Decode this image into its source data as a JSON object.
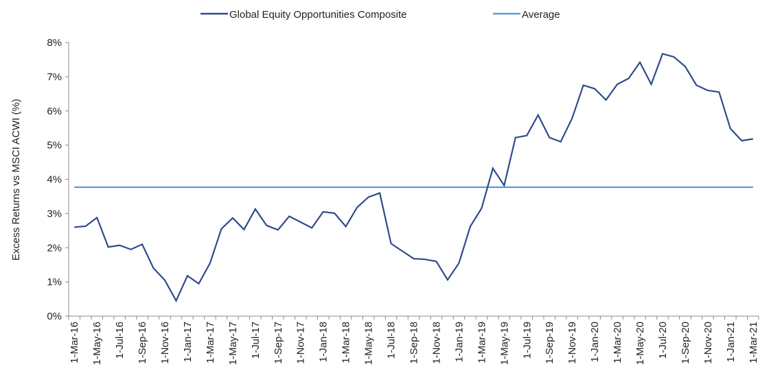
{
  "chart_data": {
    "type": "line",
    "ylabel": "Excess Returns vs MSCI ACWI (%)",
    "categories": [
      "1-Mar-16",
      null,
      "1-May-16",
      null,
      "1-Jul-16",
      null,
      "1-Sep-16",
      null,
      "1-Nov-16",
      null,
      "1-Jan-17",
      null,
      "1-Mar-17",
      null,
      "1-May-17",
      null,
      "1-Jul-17",
      null,
      "1-Sep-17",
      null,
      "1-Nov-17",
      null,
      "1-Jan-18",
      null,
      "1-Mar-18",
      null,
      "1-May-18",
      null,
      "1-Jul-18",
      null,
      "1-Sep-18",
      null,
      "1-Nov-18",
      null,
      "1-Jan-19",
      null,
      "1-Mar-19",
      null,
      "1-May-19",
      null,
      "1-Jul-19",
      null,
      "1-Sep-19",
      null,
      "1-Nov-19",
      null,
      "1-Jan-20",
      null,
      "1-Mar-20",
      null,
      "1-May-20",
      null,
      "1-Jul-20",
      null,
      "1-Sep-20",
      null,
      "1-Nov-20",
      null,
      "1-Jan-21",
      null,
      "1-Mar-21"
    ],
    "series": [
      {
        "name": "Global Equity Opportunities Composite",
        "color": "#2e4a8a",
        "values": [
          2.6,
          2.63,
          2.88,
          2.02,
          2.07,
          1.95,
          2.1,
          1.4,
          1.05,
          0.45,
          1.18,
          0.95,
          1.55,
          2.55,
          2.87,
          2.53,
          3.13,
          2.65,
          2.52,
          2.92,
          2.75,
          2.58,
          3.05,
          3.01,
          2.62,
          3.18,
          3.48,
          3.6,
          2.12,
          1.9,
          1.68,
          1.66,
          1.6,
          1.06,
          1.55,
          2.62,
          3.15,
          4.32,
          3.82,
          5.22,
          5.28,
          5.88,
          5.22,
          5.1,
          5.78,
          6.75,
          6.65,
          6.32,
          6.78,
          6.95,
          7.42,
          6.78,
          7.67,
          7.58,
          7.3,
          6.75,
          6.6,
          6.55,
          5.48,
          5.13,
          5.18
        ]
      },
      {
        "name": "Average",
        "color": "#5b9bd5",
        "values": [
          3.77,
          3.77,
          3.77,
          3.77,
          3.77,
          3.77,
          3.77,
          3.77,
          3.77,
          3.77,
          3.77,
          3.77,
          3.77,
          3.77,
          3.77,
          3.77,
          3.77,
          3.77,
          3.77,
          3.77,
          3.77,
          3.77,
          3.77,
          3.77,
          3.77,
          3.77,
          3.77,
          3.77,
          3.77,
          3.77,
          3.77,
          3.77,
          3.77,
          3.77,
          3.77,
          3.77,
          3.77,
          3.77,
          3.77,
          3.77,
          3.77,
          3.77,
          3.77,
          3.77,
          3.77,
          3.77,
          3.77,
          3.77,
          3.77,
          3.77,
          3.77,
          3.77,
          3.77,
          3.77,
          3.77,
          3.77,
          3.77,
          3.77,
          3.77,
          3.77,
          3.77
        ]
      }
    ],
    "ylim": [
      0,
      8
    ],
    "yticks": [
      {
        "value": 0,
        "label": "0%"
      },
      {
        "value": 1,
        "label": "1%"
      },
      {
        "value": 2,
        "label": "2%"
      },
      {
        "value": 3,
        "label": "3%"
      },
      {
        "value": 4,
        "label": "4%"
      },
      {
        "value": 5,
        "label": "5%"
      },
      {
        "value": 6,
        "label": "6%"
      },
      {
        "value": 7,
        "label": "7%"
      },
      {
        "value": 8,
        "label": "8%"
      }
    ],
    "legend": "top"
  }
}
